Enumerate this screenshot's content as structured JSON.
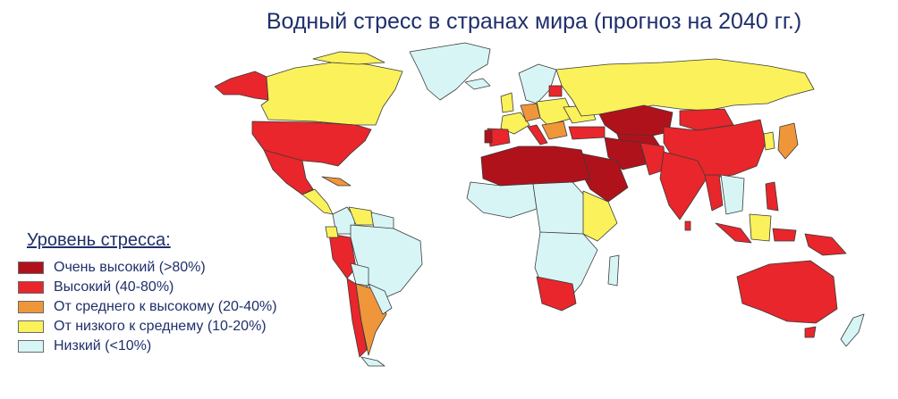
{
  "title": "Водный стресс в странах мира (прогноз на 2040 гг.)",
  "legend": {
    "title": "Уровень стресса:",
    "items": [
      {
        "label": "Очень высокий (>80%)",
        "color": "#b0121b"
      },
      {
        "label": "Высокий (40-80%)",
        "color": "#e8262b"
      },
      {
        "label": "От среднего к высокому (20-40%)",
        "color": "#f0963a"
      },
      {
        "label": "От низкого к среднему (10-20%)",
        "color": "#fbf15a"
      },
      {
        "label": "Низкий (<10%)",
        "color": "#d8f5f6"
      }
    ]
  }
}
